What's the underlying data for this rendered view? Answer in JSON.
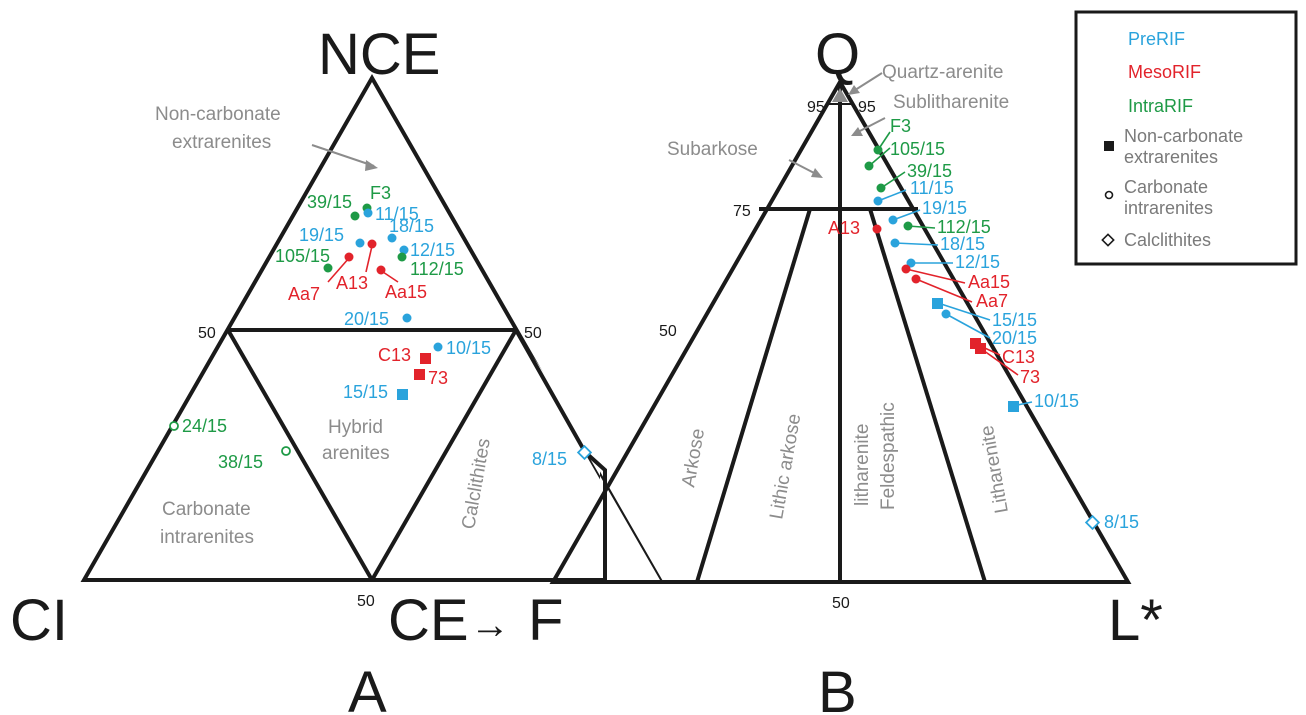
{
  "colors": {
    "prerif": "#2aa3dc",
    "mesorif": "#e2232b",
    "intrarif": "#1e9a46",
    "field": "#8c8c8c",
    "line": "#1a1a1a"
  },
  "legend": {
    "preRIF": "PreRIF",
    "mesoRIF": "MesoRIF",
    "intraRIF": "IntraRIF",
    "noncarb_1": "Non-carbonate",
    "noncarb_2": "extrarenites",
    "carb_1": "Carbonate",
    "carb_2": "intrarenites",
    "calc": "Calclithites",
    "noncarb_symbol": "filled-square",
    "carb_symbol": "open-circle",
    "calc_symbol": "open-diamond"
  },
  "panelA": {
    "letter": "A",
    "apex_top": "NCE",
    "apex_left": "CI",
    "apex_right": "CE",
    "arrow": "→",
    "apex_right2": "F",
    "tick_left_50": "50",
    "tick_right_50": "50",
    "tick_bottom_50": "50",
    "fields": {
      "nce_1": "Non-carbonate",
      "nce_2": "extrarenites",
      "hybrid_1": "Hybrid",
      "hybrid_2": "arenites",
      "carb_1": "Carbonate",
      "carb_2": "intrarenites",
      "calc": "Calclithites"
    },
    "samples": {
      "s39": "39/15",
      "F3": "F3",
      "s11": "11/15",
      "s19": "19/15",
      "s18": "18/15",
      "s12": "12/15",
      "s105": "105/15",
      "s112": "112/15",
      "Aa7": "Aa7",
      "A13": "A13",
      "Aa15": "Aa15",
      "s20": "20/15",
      "C13": "C13",
      "s10": "10/15",
      "s73": "73",
      "s15": "15/15",
      "s24": "24/15",
      "s38": "38/15",
      "s8": "8/15"
    }
  },
  "panelB": {
    "letter": "B",
    "apex_top": "Q",
    "apex_right": "L*",
    "tick_95_left": "95",
    "tick_95_right": "95",
    "tick_75": "75",
    "tick_50_left": "50",
    "tick_50_bottom": "50",
    "fields": {
      "qa": "Quartz-arenite",
      "sub": "Sublitharenite",
      "subarkose": "Subarkose",
      "arkose": "Arkose",
      "lithic": "Lithic arkose",
      "feld_1": "Feldespathic",
      "feld_2": "litharenite",
      "lith": "Litharenite"
    },
    "samples": {
      "F3": "F3",
      "s105": "105/15",
      "s39": "39/15",
      "s11": "11/15",
      "s19": "19/15",
      "s112": "112/15",
      "A13": "A13",
      "s18": "18/15",
      "s12": "12/15",
      "Aa15": "Aa15",
      "Aa7": "Aa7",
      "s15": "15/15",
      "s20": "20/15",
      "C13": "C13",
      "s73": "73",
      "s10": "10/15",
      "s8": "8/15"
    }
  }
}
